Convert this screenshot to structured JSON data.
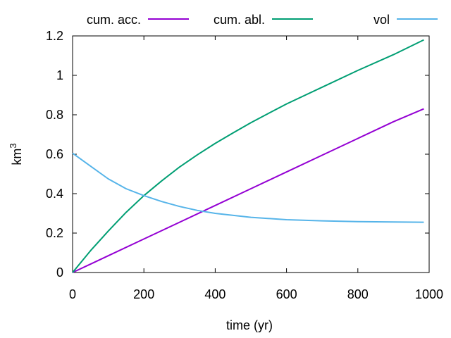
{
  "chart_data": {
    "type": "line",
    "xlabel": "time (yr)",
    "ylabel": "km",
    "ylabel_superscript": "3",
    "xlim": [
      0,
      1000
    ],
    "ylim": [
      0,
      1.2
    ],
    "x_ticks": [
      "0",
      "200",
      "400",
      "600",
      "800",
      "1000"
    ],
    "y_ticks": [
      "0",
      "0.2",
      "0.4",
      "0.6",
      "0.8",
      "1",
      "1.2"
    ],
    "grid": false,
    "legend_position": "top, outside plot area",
    "series": [
      {
        "name": "cum. acc.",
        "color": "#9400d3",
        "x": [
          0,
          100,
          200,
          300,
          400,
          500,
          600,
          700,
          800,
          900,
          985
        ],
        "y": [
          0,
          0.085,
          0.17,
          0.255,
          0.34,
          0.425,
          0.51,
          0.595,
          0.68,
          0.765,
          0.83
        ]
      },
      {
        "name": "cum. abl.",
        "color": "#009e73",
        "x": [
          0,
          50,
          100,
          150,
          200,
          250,
          300,
          350,
          400,
          450,
          500,
          600,
          700,
          800,
          900,
          985
        ],
        "y": [
          0,
          0.11,
          0.21,
          0.305,
          0.39,
          0.465,
          0.535,
          0.597,
          0.655,
          0.708,
          0.76,
          0.855,
          0.94,
          1.025,
          1.105,
          1.18
        ]
      },
      {
        "name": "vol",
        "color": "#56b4e9",
        "x": [
          0,
          50,
          100,
          150,
          200,
          250,
          300,
          350,
          400,
          500,
          600,
          700,
          800,
          900,
          985
        ],
        "y": [
          0.605,
          0.54,
          0.475,
          0.425,
          0.39,
          0.36,
          0.335,
          0.315,
          0.3,
          0.28,
          0.268,
          0.262,
          0.258,
          0.256,
          0.255
        ]
      }
    ]
  }
}
